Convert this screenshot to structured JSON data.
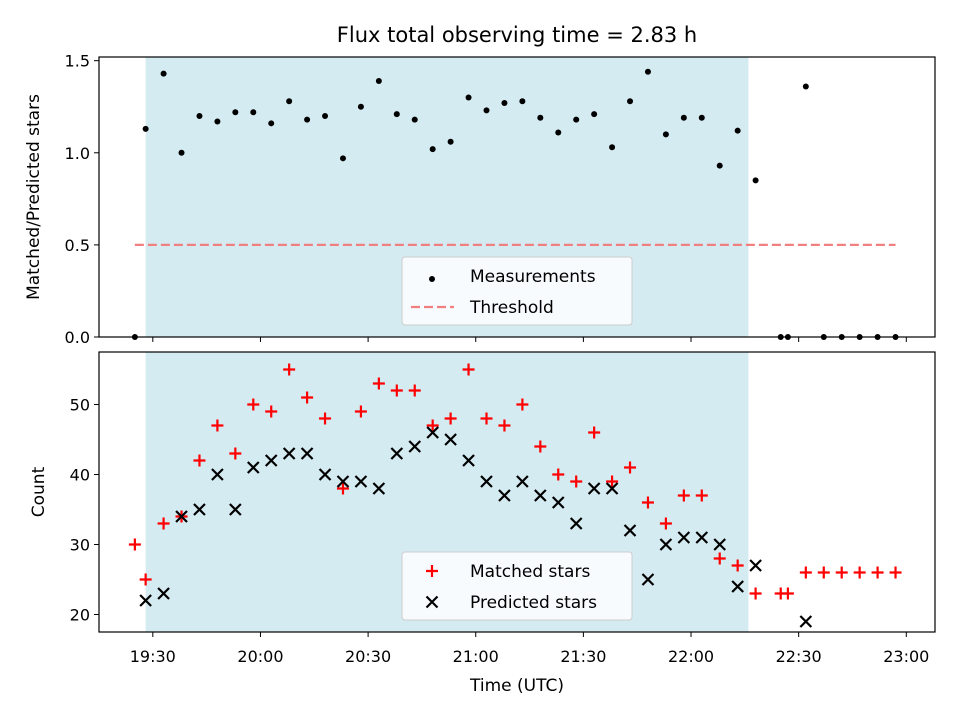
{
  "title": "Flux total observing time = 2.83 h",
  "chart_data": [
    {
      "type": "scatter",
      "ylabel": "Matched/Predicted stars",
      "xlim": [
        "19:15",
        "23:08"
      ],
      "ylim": [
        0,
        1.52
      ],
      "yticks": [
        "0.0",
        "0.5",
        "1.0",
        "1.5"
      ],
      "shaded_span": [
        "19:28",
        "22:16"
      ],
      "legend_position": "lower-center",
      "series": [
        {
          "name": "Measurements",
          "color": "#000000",
          "marker": "dot",
          "x": [
            "19:25",
            "19:28",
            "19:33",
            "19:38",
            "19:43",
            "19:48",
            "19:53",
            "19:58",
            "20:03",
            "20:08",
            "20:13",
            "20:18",
            "20:23",
            "20:28",
            "20:33",
            "20:38",
            "20:43",
            "20:48",
            "20:53",
            "20:58",
            "21:03",
            "21:08",
            "21:13",
            "21:18",
            "21:23",
            "21:28",
            "21:33",
            "21:38",
            "21:43",
            "21:48",
            "21:53",
            "21:58",
            "22:03",
            "22:08",
            "22:13",
            "22:18",
            "22:25",
            "22:27",
            "22:32",
            "22:37",
            "22:42",
            "22:47",
            "22:52",
            "22:57"
          ],
          "y": [
            0,
            1.13,
            1.43,
            1.0,
            1.2,
            1.17,
            1.22,
            1.22,
            1.16,
            1.28,
            1.18,
            1.2,
            0.97,
            1.25,
            1.39,
            1.21,
            1.18,
            1.02,
            1.06,
            1.3,
            1.23,
            1.27,
            1.28,
            1.19,
            1.11,
            1.18,
            1.21,
            1.03,
            1.28,
            1.44,
            1.1,
            1.19,
            1.19,
            0.93,
            1.12,
            0.85,
            0,
            0,
            1.36,
            0,
            0,
            0,
            0,
            0
          ]
        },
        {
          "name": "Threshold",
          "color": "#f08080",
          "style": "dashed",
          "x": [
            "19:25",
            "22:57"
          ],
          "y": [
            0.5,
            0.5
          ]
        }
      ]
    },
    {
      "type": "scatter",
      "xlabel": "Time (UTC)",
      "ylabel": "Count",
      "xlim": [
        "19:15",
        "23:08"
      ],
      "ylim": [
        17.5,
        57.5
      ],
      "yticks": [
        "20",
        "30",
        "40",
        "50"
      ],
      "xticks": [
        "19:30",
        "20:00",
        "20:30",
        "21:00",
        "21:30",
        "22:00",
        "22:30",
        "23:00"
      ],
      "shaded_span": [
        "19:28",
        "22:16"
      ],
      "legend_position": "lower-center",
      "series": [
        {
          "name": "Matched stars",
          "color": "#ff0000",
          "marker": "plus",
          "x": [
            "19:25",
            "19:28",
            "19:33",
            "19:38",
            "19:43",
            "19:48",
            "19:53",
            "19:58",
            "20:03",
            "20:08",
            "20:13",
            "20:18",
            "20:23",
            "20:28",
            "20:33",
            "20:38",
            "20:43",
            "20:48",
            "20:53",
            "20:58",
            "21:03",
            "21:08",
            "21:13",
            "21:18",
            "21:23",
            "21:28",
            "21:33",
            "21:38",
            "21:43",
            "21:48",
            "21:53",
            "21:58",
            "22:03",
            "22:08",
            "22:13",
            "22:18",
            "22:25",
            "22:27",
            "22:32",
            "22:37",
            "22:42",
            "22:47",
            "22:52",
            "22:57"
          ],
          "y": [
            30,
            25,
            33,
            34,
            42,
            47,
            43,
            50,
            49,
            55,
            51,
            48,
            38,
            49,
            53,
            52,
            52,
            47,
            48,
            55,
            48,
            47,
            50,
            44,
            40,
            39,
            46,
            39,
            41,
            36,
            33,
            37,
            37,
            28,
            27,
            23,
            23,
            23,
            26,
            26,
            26,
            26,
            26,
            26
          ]
        },
        {
          "name": "Predicted stars",
          "color": "#000000",
          "marker": "x",
          "x": [
            "19:28",
            "19:33",
            "19:38",
            "19:43",
            "19:48",
            "19:53",
            "19:58",
            "20:03",
            "20:08",
            "20:13",
            "20:18",
            "20:23",
            "20:28",
            "20:33",
            "20:38",
            "20:43",
            "20:48",
            "20:53",
            "20:58",
            "21:03",
            "21:08",
            "21:13",
            "21:18",
            "21:23",
            "21:28",
            "21:33",
            "21:38",
            "21:43",
            "21:48",
            "21:53",
            "21:58",
            "22:03",
            "22:08",
            "22:13",
            "22:18",
            "22:32"
          ],
          "y": [
            22,
            23,
            34,
            35,
            40,
            35,
            41,
            42,
            43,
            43,
            40,
            39,
            39,
            38,
            43,
            44,
            46,
            45,
            42,
            39,
            37,
            39,
            37,
            36,
            33,
            38,
            38,
            32,
            25,
            30,
            31,
            31,
            30,
            24,
            27,
            19
          ]
        }
      ]
    }
  ]
}
